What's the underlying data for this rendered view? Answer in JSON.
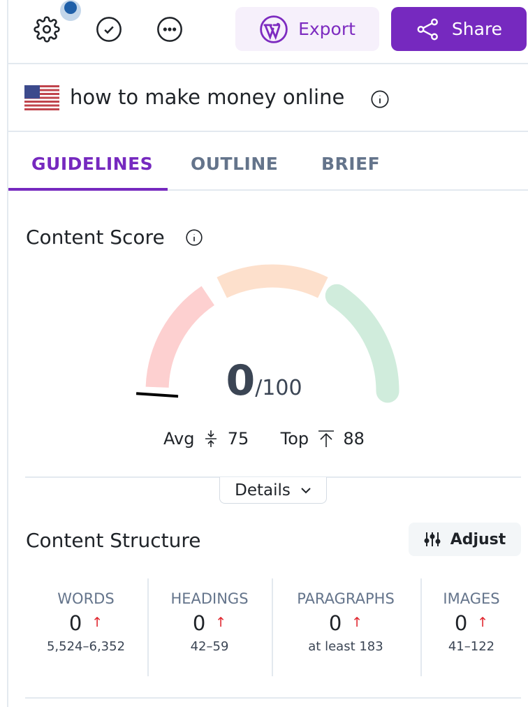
{
  "toolbar": {
    "settings_icon": "gear-icon",
    "check_icon": "check-circle-icon",
    "more_icon": "more-horizontal-icon",
    "export_label": "Export",
    "share_label": "Share",
    "accent": "#7629bf"
  },
  "keyword": {
    "flag": "us-flag",
    "text": "how to make money online"
  },
  "tabs": [
    {
      "label": "GUIDELINES",
      "active": true
    },
    {
      "label": "OUTLINE"
    },
    {
      "label": "BRIEF"
    }
  ],
  "content_score": {
    "title": "Content Score",
    "value": "0",
    "max": "/100",
    "score_value": 0,
    "avg_label": "Avg",
    "avg_value": "75",
    "top_label": "Top",
    "top_value": "88",
    "details_label": "Details",
    "gauge_colors": {
      "low": "#fdd0d0",
      "mid": "#fde0cc",
      "high": "#d0ecdc"
    }
  },
  "content_structure": {
    "title": "Content Structure",
    "adjust_label": "Adjust",
    "metrics": [
      {
        "label": "WORDS",
        "value": "0",
        "range": "5,524–6,352"
      },
      {
        "label": "HEADINGS",
        "value": "0",
        "range": "42–59"
      },
      {
        "label": "PARAGRAPHS",
        "value": "0",
        "range": "at least 183"
      },
      {
        "label": "IMAGES",
        "value": "0",
        "range": "41–122"
      }
    ]
  }
}
